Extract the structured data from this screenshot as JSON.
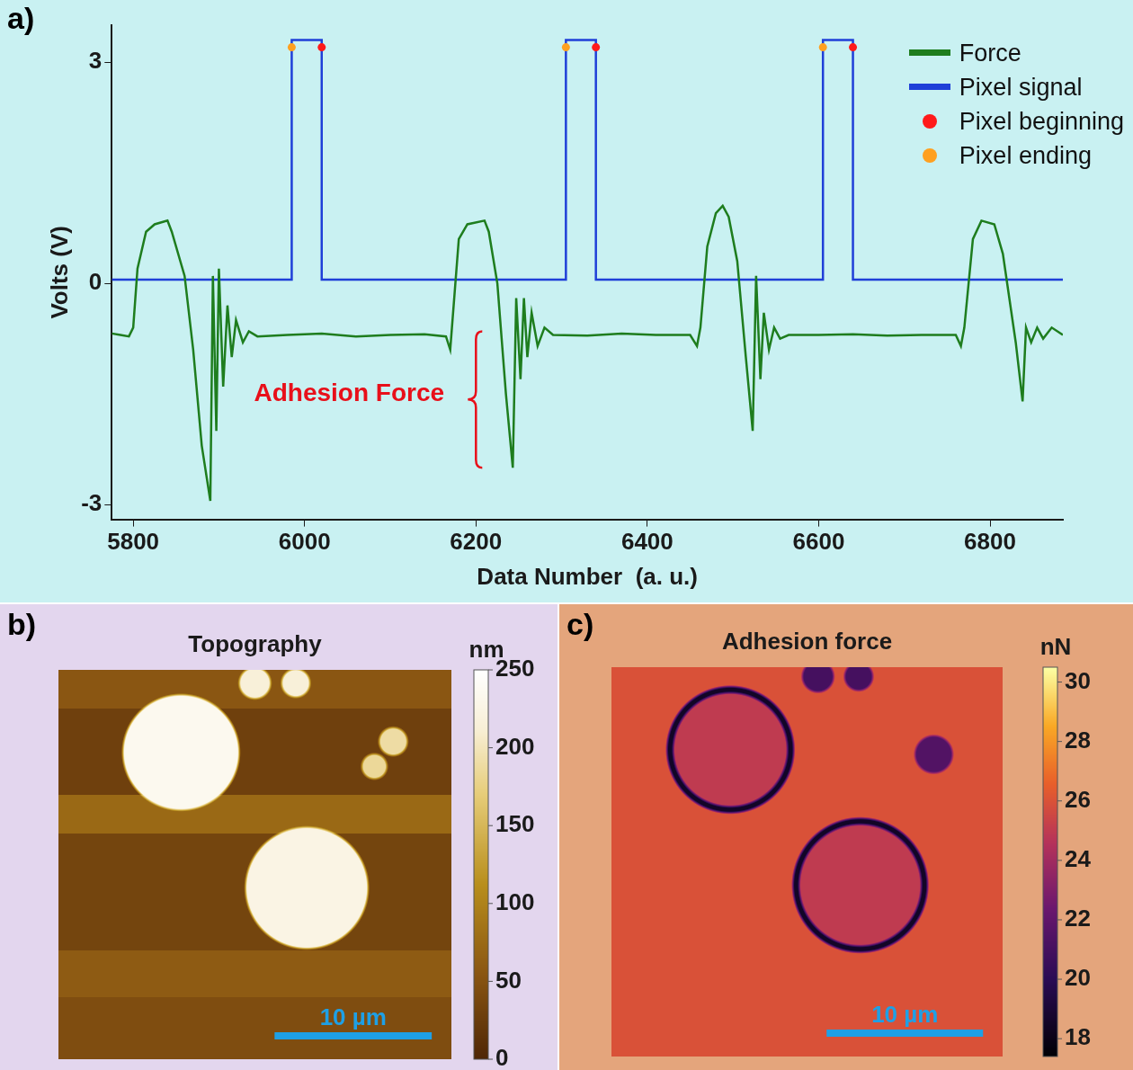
{
  "chart_data": [
    {
      "type": "line",
      "label": "a)",
      "x_label": "Data Number  (a. u.)",
      "y_label": "Volts (V)",
      "xlim": [
        5775,
        6885
      ],
      "xticks": [
        5800,
        6000,
        6200,
        6400,
        6600,
        6800
      ],
      "ylim": [
        -3.2,
        3.5
      ],
      "yticks": [
        -3,
        0,
        3
      ],
      "grid": false,
      "legend": "upper right",
      "series": [
        {
          "name": "Force",
          "color": "#1e7d1e",
          "type": "line",
          "x": [
            5775,
            5785,
            5795,
            5800,
            5805,
            5815,
            5825,
            5840,
            5845,
            5860,
            5870,
            5880,
            5890,
            5893,
            5897,
            5900,
            5905,
            5910,
            5915,
            5920,
            5928,
            5935,
            5945,
            5980,
            6020,
            6060,
            6100,
            6140,
            6165,
            6170,
            6180,
            6190,
            6210,
            6215,
            6225,
            6235,
            6243,
            6247,
            6252,
            6256,
            6260,
            6265,
            6272,
            6280,
            6290,
            6330,
            6370,
            6410,
            6450,
            6458,
            6462,
            6470,
            6480,
            6488,
            6495,
            6505,
            6515,
            6523,
            6527,
            6532,
            6536,
            6542,
            6548,
            6555,
            6565,
            6600,
            6640,
            6680,
            6720,
            6760,
            6766,
            6770,
            6780,
            6790,
            6805,
            6815,
            6830,
            6838,
            6842,
            6848,
            6855,
            6862,
            6872,
            6885
          ],
          "values": [
            -0.68,
            -0.7,
            -0.72,
            -0.6,
            0.2,
            0.7,
            0.8,
            0.85,
            0.7,
            0.1,
            -0.9,
            -2.2,
            -2.95,
            0.1,
            -2.0,
            0.2,
            -1.4,
            -0.3,
            -1.0,
            -0.5,
            -0.8,
            -0.65,
            -0.72,
            -0.7,
            -0.68,
            -0.72,
            -0.7,
            -0.69,
            -0.72,
            -0.9,
            0.6,
            0.8,
            0.85,
            0.7,
            0,
            -1.5,
            -2.5,
            -0.2,
            -1.3,
            -0.2,
            -1.0,
            -0.4,
            -0.85,
            -0.6,
            -0.7,
            -0.71,
            -0.68,
            -0.7,
            -0.7,
            -0.85,
            -0.6,
            0.5,
            0.95,
            1.05,
            0.9,
            0.3,
            -1.0,
            -2.0,
            0.1,
            -1.3,
            -0.4,
            -0.9,
            -0.6,
            -0.75,
            -0.7,
            -0.7,
            -0.69,
            -0.71,
            -0.7,
            -0.7,
            -0.85,
            -0.6,
            0.6,
            0.85,
            0.8,
            0.4,
            -0.8,
            -1.6,
            -0.6,
            -0.8,
            -0.6,
            -0.75,
            -0.6,
            -0.7
          ]
        },
        {
          "name": "Pixel signal",
          "color": "#1f3fd8",
          "type": "line",
          "x": [
            5775,
            5985,
            5985,
            6020,
            6020,
            6305,
            6305,
            6340,
            6340,
            6605,
            6605,
            6640,
            6640,
            6885
          ],
          "values": [
            0.05,
            0.05,
            3.3,
            3.3,
            0.05,
            0.05,
            3.3,
            3.3,
            0.05,
            0.05,
            3.3,
            3.3,
            0.05,
            0.05
          ]
        },
        {
          "name": "Pixel beginning",
          "color": "#ff1a1a",
          "type": "scatter",
          "marker": "circle",
          "x": [
            6020,
            6340,
            6640
          ],
          "values": [
            3.2,
            3.2,
            3.2
          ]
        },
        {
          "name": "Pixel ending",
          "color": "#ffa020",
          "type": "scatter",
          "marker": "circle",
          "x": [
            5985,
            6305,
            6605
          ],
          "values": [
            3.2,
            3.2,
            3.2
          ]
        }
      ],
      "annotations": [
        {
          "text": "Adhesion Force",
          "x": 6052,
          "y": -1.5,
          "color": "#e8101a",
          "bracket_x": 6200,
          "bracket": [
            -0.65,
            -2.5
          ]
        }
      ]
    },
    {
      "type": "heatmap",
      "label": "b)",
      "title": "Topography",
      "xlim": [
        0,
        25
      ],
      "ylim": [
        0,
        25
      ],
      "tick_labels": false,
      "background_bands": [
        {
          "from": 0,
          "to": 2.5,
          "value": 55
        },
        {
          "from": 2.5,
          "to": 8,
          "value": 30
        },
        {
          "from": 8,
          "to": 10.5,
          "value": 75
        },
        {
          "from": 10.5,
          "to": 18,
          "value": 35
        },
        {
          "from": 18,
          "to": 21,
          "value": 60
        },
        {
          "from": 21,
          "to": 25,
          "value": 45
        }
      ],
      "features": [
        {
          "shape": "disk",
          "x": 7.8,
          "y": 5.3,
          "r": 3.7,
          "value": 235
        },
        {
          "shape": "disk",
          "x": 15.8,
          "y": 14.0,
          "r": 3.9,
          "value": 225
        },
        {
          "shape": "disk",
          "x": 12.5,
          "y": 0.85,
          "r": 1.0,
          "value": 215
        },
        {
          "shape": "disk",
          "x": 15.1,
          "y": 0.85,
          "r": 0.9,
          "value": 215
        },
        {
          "shape": "disk",
          "x": 21.3,
          "y": 4.6,
          "r": 0.9,
          "value": 190
        },
        {
          "shape": "disk",
          "x": 20.1,
          "y": 6.2,
          "r": 0.8,
          "value": 185
        }
      ],
      "colorbar": {
        "title": "nm",
        "range": [
          0,
          250
        ],
        "ticks": [
          0,
          50,
          100,
          150,
          200,
          250
        ]
      },
      "scale_bar": {
        "length": 10,
        "label": "10 µm"
      }
    },
    {
      "type": "heatmap",
      "label": "c)",
      "title": "Adhesion force",
      "xlim": [
        0,
        25
      ],
      "ylim": [
        0,
        25
      ],
      "tick_labels": false,
      "background": 26,
      "features": [
        {
          "shape": "disk",
          "x": 7.6,
          "y": 5.3,
          "r": 3.7,
          "value": 25
        },
        {
          "shape": "ring",
          "x": 7.6,
          "y": 5.3,
          "r": 3.85,
          "width": 0.4,
          "value": 18.5
        },
        {
          "shape": "disk",
          "x": 15.9,
          "y": 14.0,
          "r": 3.9,
          "value": 25
        },
        {
          "shape": "ring",
          "x": 15.9,
          "y": 14.0,
          "r": 4.1,
          "width": 0.4,
          "value": 18.5
        },
        {
          "shape": "disk",
          "x": 13.2,
          "y": 0.6,
          "r": 1.0,
          "value": 21
        },
        {
          "shape": "disk",
          "x": 15.8,
          "y": 0.6,
          "r": 0.9,
          "value": 21
        },
        {
          "shape": "disk",
          "x": 20.6,
          "y": 5.6,
          "r": 1.2,
          "value": 21.5
        }
      ],
      "colorbar": {
        "title": "nN",
        "range": [
          17.4,
          30.5
        ],
        "ticks": [
          18,
          20,
          22,
          24,
          26,
          28,
          30
        ]
      },
      "scale_bar": {
        "length": 10,
        "label": "10 µm"
      }
    }
  ]
}
